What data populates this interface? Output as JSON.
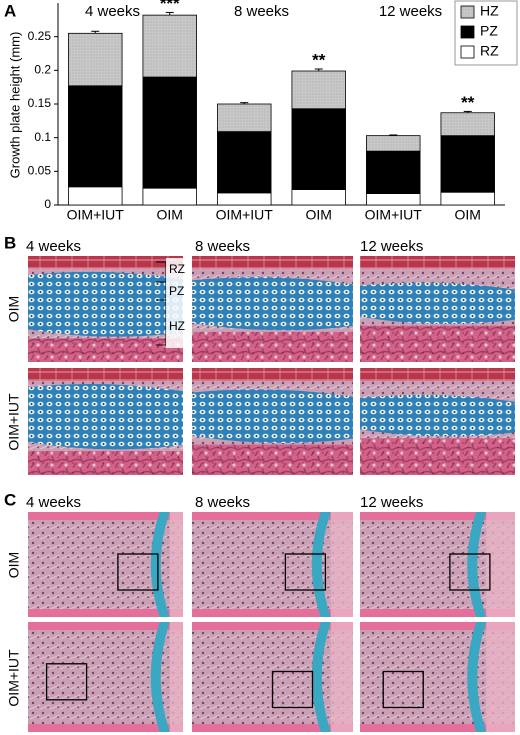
{
  "chart_data": {
    "type": "stacked_bar",
    "ylabel": "Growth plate height (mm)",
    "categories": [
      "OIM+IUT",
      "OIM",
      "OIM+IUT",
      "OIM",
      "OIM+IUT",
      "OIM"
    ],
    "groups": [
      "4 weeks",
      "8 weeks",
      "12 weeks"
    ],
    "annotations": [
      null,
      "***",
      null,
      "**",
      null,
      "**"
    ],
    "series": [
      {
        "name": "RZ",
        "color": "#ffffff",
        "values": [
          0.027,
          0.025,
          0.018,
          0.023,
          0.017,
          0.019
        ]
      },
      {
        "name": "PZ",
        "color": "#000000",
        "values": [
          0.15,
          0.165,
          0.091,
          0.12,
          0.063,
          0.084
        ],
        "errors": [
          0.004,
          0.004,
          0.005,
          0.007,
          0.003,
          0.003
        ]
      },
      {
        "name": "HZ",
        "color": "#c8c8c8",
        "values": [
          0.078,
          0.092,
          0.041,
          0.056,
          0.023,
          0.034
        ],
        "errors": [
          0.003,
          0.004,
          0.002,
          0.003,
          0.001,
          0.002
        ]
      }
    ],
    "ylim": [
      0,
      0.3
    ],
    "yticks": [
      0,
      0.05,
      0.1,
      0.15,
      0.2,
      0.25
    ],
    "legend": "upper right",
    "grid": false
  },
  "figure": {
    "panel_labels": [
      "A",
      "B",
      "C"
    ],
    "row_labels": [
      "OIM",
      "OIM+IUT"
    ],
    "zone_labels": [
      "RZ",
      "PZ",
      "HZ"
    ]
  }
}
